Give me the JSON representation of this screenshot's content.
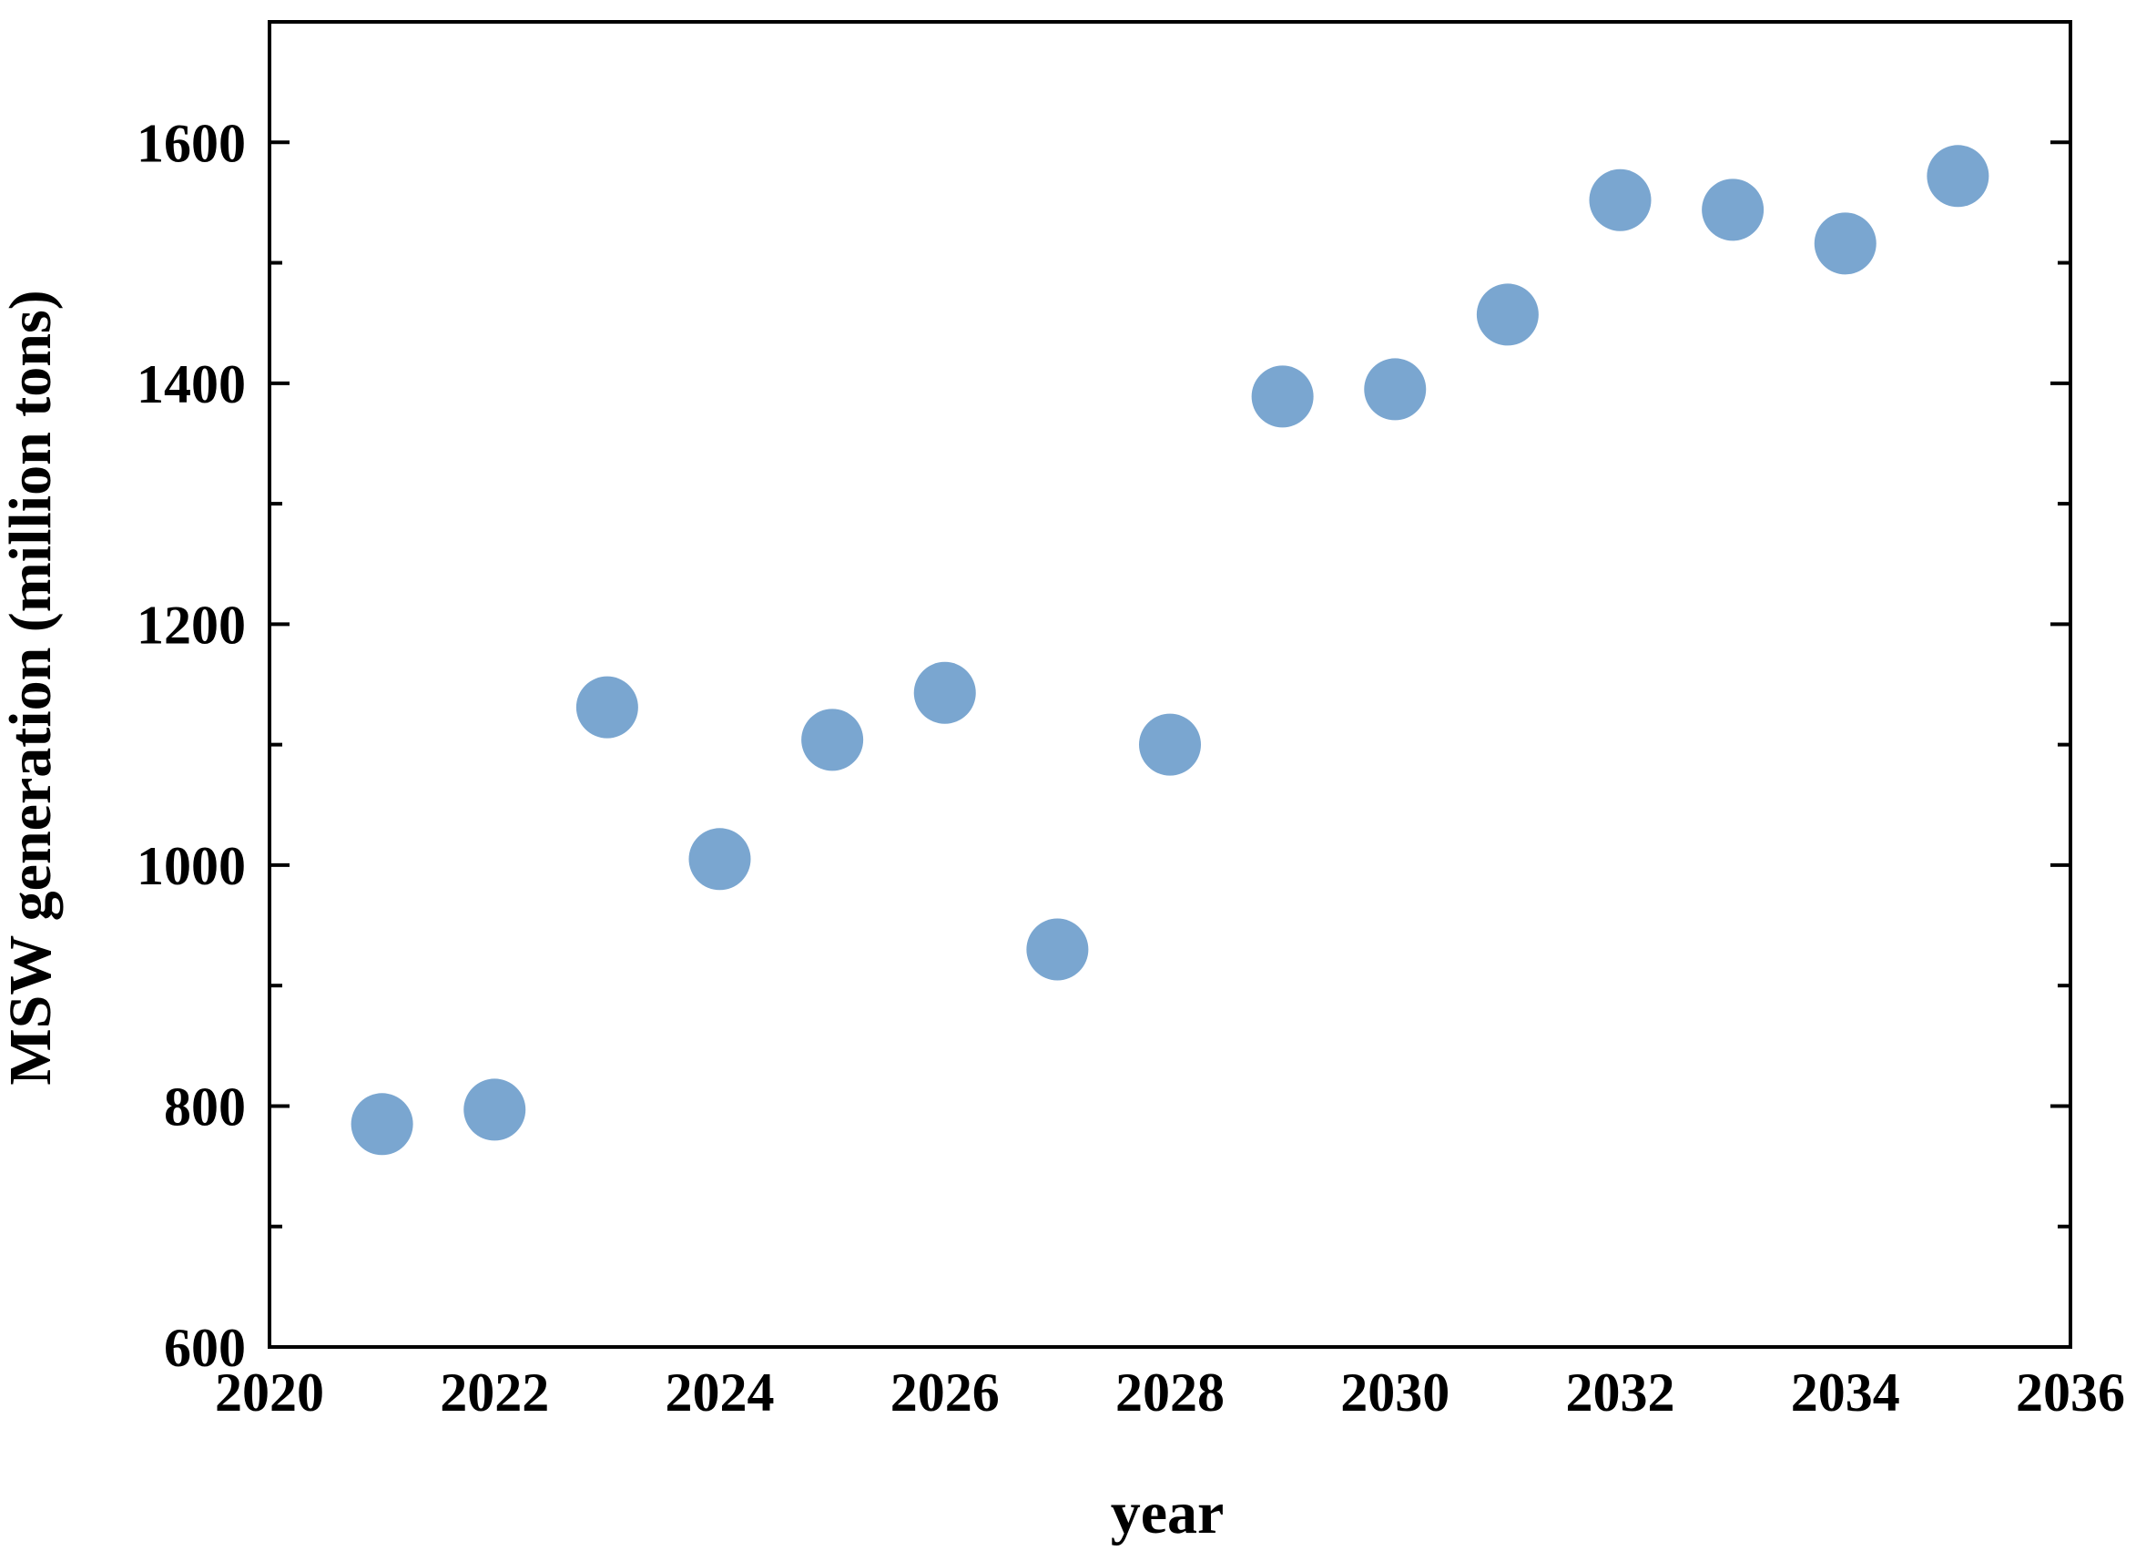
{
  "chart_data": {
    "type": "scatter",
    "title": "",
    "xlabel": "year",
    "ylabel": "MSW generation (million tons)",
    "xlim": [
      2020,
      2036
    ],
    "ylim": [
      600,
      1700
    ],
    "xticks": [
      2020,
      2022,
      2024,
      2026,
      2028,
      2030,
      2032,
      2034,
      2036
    ],
    "yticks": [
      600,
      800,
      1000,
      1200,
      1400,
      1600
    ],
    "yminor_step": 100,
    "grid": false,
    "legend": "none",
    "marker_color": "#7aa6d0",
    "series": [
      {
        "x": [
          2021,
          2022,
          2023,
          2024,
          2025,
          2026,
          2027,
          2028,
          2029,
          2030,
          2031,
          2032,
          2033,
          2034,
          2035
        ],
        "y": [
          785,
          797,
          1131,
          1005,
          1104,
          1143,
          930,
          1100,
          1389,
          1395,
          1457,
          1552,
          1544,
          1516,
          1572
        ]
      }
    ]
  }
}
